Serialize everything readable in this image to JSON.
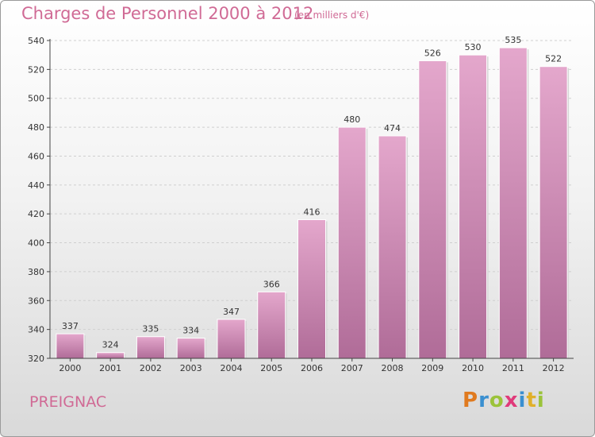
{
  "header": {
    "title": "Charges de Personnel 2000 à 2012",
    "subtitle": "(en milliers d'€)"
  },
  "footer": {
    "town": "PREIGNAC",
    "logo_text": "Proxiti",
    "logo_colors": [
      "#e07a1f",
      "#3a8fd0",
      "#9bc33a",
      "#e03a7a",
      "#3a8fd0",
      "#e0b02a",
      "#9bc33a"
    ]
  },
  "chart_data": {
    "type": "bar",
    "categories": [
      "2000",
      "2001",
      "2002",
      "2003",
      "2004",
      "2005",
      "2006",
      "2007",
      "2008",
      "2009",
      "2010",
      "2011",
      "2012"
    ],
    "values": [
      337,
      324,
      335,
      334,
      347,
      366,
      416,
      480,
      474,
      526,
      530,
      535,
      522
    ],
    "ylim": [
      320,
      540
    ],
    "yticks": [
      320,
      340,
      360,
      380,
      400,
      420,
      440,
      460,
      480,
      500,
      520,
      540
    ],
    "grid": true,
    "bar_color_top": "#e4a7cc",
    "bar_color_bottom": "#b06c98"
  }
}
